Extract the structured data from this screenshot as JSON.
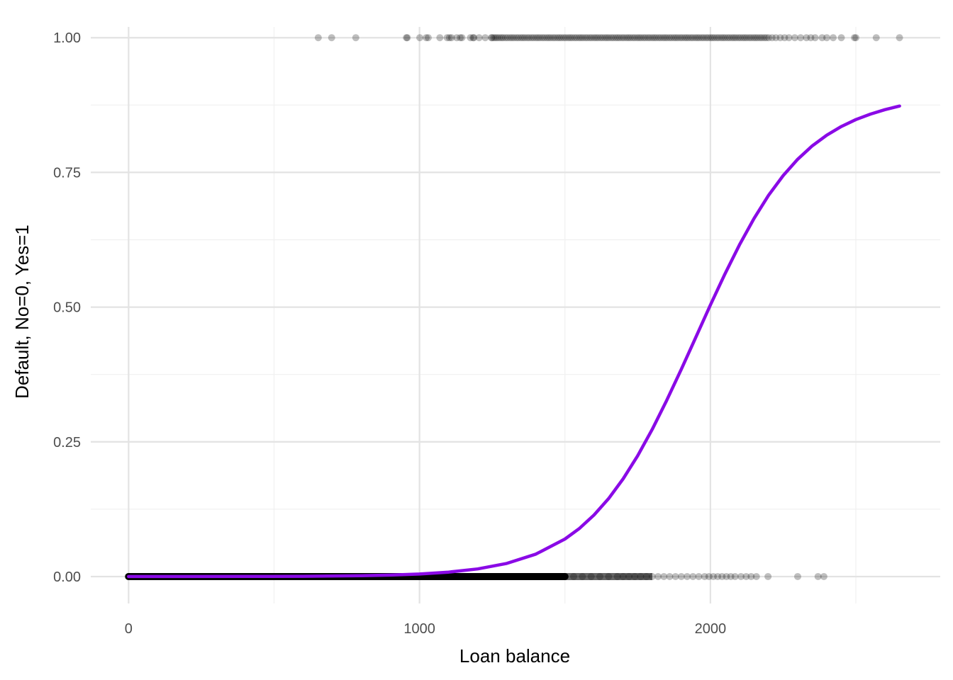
{
  "chart_data": {
    "type": "scatter",
    "title": "",
    "xlabel": "Loan balance",
    "ylabel": "Default, No=0, Yes=1",
    "xlim": [
      -130,
      2790
    ],
    "ylim": [
      -0.05,
      1.02
    ],
    "x_ticks": [
      0,
      1000,
      2000
    ],
    "x_tick_labels": [
      "0",
      "1000",
      "2000"
    ],
    "x_minor_ticks": [
      500,
      1500,
      2500
    ],
    "y_ticks": [
      0,
      0.25,
      0.5,
      0.75,
      1
    ],
    "y_tick_labels": [
      "0.00",
      "0.25",
      "0.50",
      "0.75",
      "1.00"
    ],
    "y_minor_ticks": [
      0.125,
      0.375,
      0.625,
      0.875
    ],
    "grid": true,
    "legend": "none",
    "colors": {
      "curve": "#8A0AE6",
      "points": "#000000",
      "grid_major": "#e3e3e3",
      "grid_minor": "#f0f0f0"
    },
    "series": [
      {
        "type": "scatter",
        "opacity": 0.25,
        "points_y1_x": [
          652,
          698,
          781,
          955,
          958,
          1001,
          1023,
          1030,
          1070,
          1095,
          1103,
          1110,
          1128,
          1140,
          1146,
          1175,
          1184,
          1187,
          1205,
          1226,
          1247,
          1250,
          1256,
          1262,
          1268,
          1275,
          1282,
          1288,
          1296,
          1303,
          1311,
          1318,
          1325,
          1333,
          1340,
          1348,
          1355,
          1362,
          1370,
          1377,
          1385,
          1392,
          1400,
          1407,
          1414,
          1422,
          1429,
          1437,
          1444,
          1451,
          1459,
          1466,
          1474,
          1481,
          1488,
          1496,
          1503,
          1511,
          1518,
          1525,
          1533,
          1540,
          1548,
          1555,
          1562,
          1570,
          1577,
          1585,
          1592,
          1600,
          1607,
          1614,
          1622,
          1629,
          1637,
          1644,
          1651,
          1659,
          1666,
          1674,
          1681,
          1688,
          1696,
          1703,
          1711,
          1718,
          1725,
          1733,
          1740,
          1748,
          1755,
          1762,
          1770,
          1777,
          1785,
          1792,
          1800,
          1807,
          1814,
          1822,
          1829,
          1837,
          1844,
          1851,
          1859,
          1866,
          1874,
          1881,
          1888,
          1896,
          1903,
          1911,
          1918,
          1925,
          1933,
          1940,
          1948,
          1955,
          1962,
          1970,
          1977,
          1985,
          1992,
          2000,
          2007,
          2014,
          2022,
          2029,
          2037,
          2044,
          2051,
          2059,
          2066,
          2074,
          2081,
          2088,
          2096,
          2103,
          2111,
          2118,
          2125,
          2133,
          2140,
          2148,
          2155,
          2162,
          2170,
          2177,
          2185,
          2192,
          2200,
          2212,
          2225,
          2240,
          2255,
          2270,
          2290,
          2310,
          2330,
          2345,
          2360,
          2384,
          2400,
          2422,
          2450,
          2495,
          2500,
          2570,
          2650
        ],
        "points_y0_x": [
          0,
          0,
          0,
          0,
          60,
          150,
          260,
          380,
          500,
          620,
          740,
          860,
          950,
          1000,
          1050,
          1090,
          1130,
          1165,
          1200,
          1230,
          1260,
          1290,
          1320,
          1350,
          1380,
          1410,
          1440,
          1470,
          1500,
          1530,
          1560,
          1590,
          1620,
          1650,
          1680,
          1700,
          1720,
          1740,
          1760,
          1780,
          1800,
          1820,
          1840,
          1860,
          1880,
          1900,
          1920,
          1940,
          1960,
          1980,
          1995,
          2010,
          2025,
          2040,
          2055,
          2070,
          2085,
          2105,
          2123,
          2140,
          2158,
          2198,
          2300,
          2370,
          2390
        ]
      },
      {
        "type": "line",
        "name": "",
        "x": [
          0,
          200,
          400,
          600,
          800,
          900,
          1000,
          1100,
          1200,
          1300,
          1400,
          1500,
          1550,
          1600,
          1650,
          1700,
          1750,
          1800,
          1850,
          1900,
          1950,
          2000,
          2050,
          2100,
          2150,
          2200,
          2250,
          2300,
          2350,
          2400,
          2450,
          2500,
          2550,
          2600,
          2650
        ],
        "y": [
          2e-05,
          6e-05,
          0.00018,
          0.00054,
          0.0016,
          0.0027,
          0.0047,
          0.0082,
          0.0142,
          0.0244,
          0.0416,
          0.0696,
          0.0895,
          0.1143,
          0.1447,
          0.1813,
          0.2242,
          0.2731,
          0.3271,
          0.3848,
          0.4444,
          0.504,
          0.5617,
          0.6157,
          0.6646,
          0.7075,
          0.7441,
          0.7745,
          0.7993,
          0.8192,
          0.8352,
          0.848,
          0.8582,
          0.8665,
          0.8732
        ]
      }
    ]
  }
}
